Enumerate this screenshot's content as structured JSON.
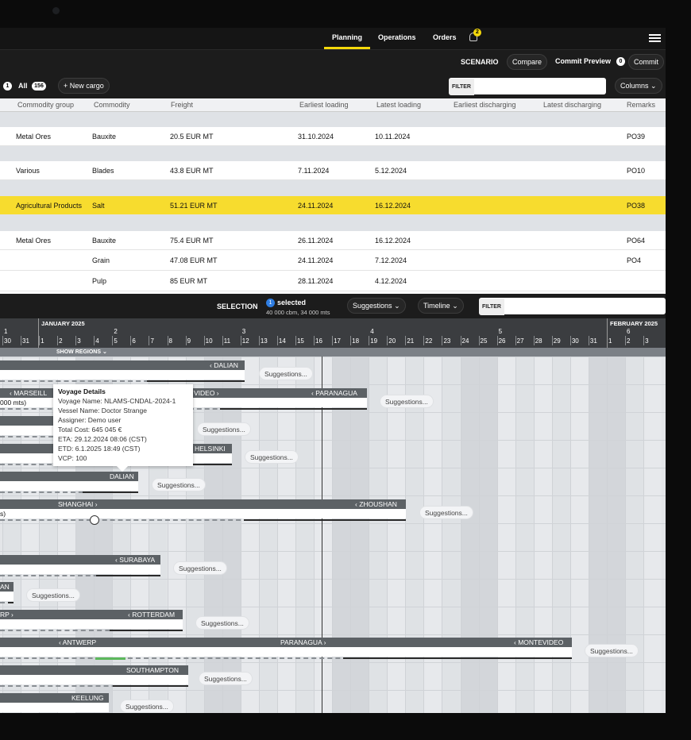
{
  "nav": {
    "tabs": [
      "Planning",
      "Operations",
      "Orders"
    ],
    "active_tab": "Planning",
    "notification_count": "2",
    "accent": "#f5d90a"
  },
  "scenario": {
    "label": "SCENARIO",
    "compare": "Compare",
    "commit_preview": "Commit Preview",
    "commit_count": "0",
    "commit": "Commit"
  },
  "cargo_toolbar": {
    "selected_count": "1",
    "all_label": "All",
    "all_count": "156",
    "new_cargo": "+ New cargo",
    "filter_label": "FILTER",
    "filter_value": "",
    "columns": "Columns"
  },
  "table": {
    "headers": [
      "Commodity group",
      "Commodity",
      "Freight",
      "Earliest loading",
      "Latest loading",
      "Earliest discharging",
      "Latest discharging",
      "Remarks"
    ],
    "rows": [
      {
        "group": "Metal Ores",
        "commodity": "Bauxite",
        "freight": "20.5 EUR MT",
        "earliest_loading": "31.10.2024",
        "latest_loading": "10.11.2024",
        "remarks": "PO39"
      },
      {
        "group": "Various",
        "commodity": "Blades",
        "freight": "43.8 EUR MT",
        "earliest_loading": "7.11.2024",
        "latest_loading": "5.12.2024",
        "remarks": "PO10"
      },
      {
        "group": "Agricultural Products",
        "commodity": "Salt",
        "freight": "51.21 EUR MT",
        "earliest_loading": "24.11.2024",
        "latest_loading": "16.12.2024",
        "remarks": "PO38",
        "highlighted": true
      },
      {
        "group": "Metal Ores",
        "commodity": "Bauxite",
        "freight": "75.4 EUR MT",
        "earliest_loading": "26.11.2024",
        "latest_loading": "16.12.2024",
        "remarks": "PO64"
      },
      {
        "group": "",
        "commodity": "Grain",
        "freight": "47.08 EUR MT",
        "earliest_loading": "24.11.2024",
        "latest_loading": "7.12.2024",
        "remarks": "PO4"
      },
      {
        "group": "",
        "commodity": "Pulp",
        "freight": "85 EUR MT",
        "earliest_loading": "28.11.2024",
        "latest_loading": "4.12.2024",
        "remarks": ""
      }
    ]
  },
  "selection": {
    "label": "SELECTION",
    "count": "1",
    "selected": "selected",
    "summary": "40 000 cbm, 34 000 mts",
    "suggestions": "Suggestions",
    "timeline": "Timeline",
    "filter_label": "FILTER"
  },
  "timeline": {
    "months": [
      "JANUARY 2025",
      "FEBRUARY 2025"
    ],
    "weeks": [
      "1",
      "2",
      "3",
      "4",
      "5",
      "6"
    ],
    "days": [
      "30",
      "31",
      "1",
      "2",
      "3",
      "4",
      "5",
      "6",
      "7",
      "8",
      "9",
      "10",
      "11",
      "12",
      "13",
      "14",
      "15",
      "16",
      "17",
      "18",
      "19",
      "20",
      "21",
      "22",
      "23",
      "24",
      "25",
      "26",
      "27",
      "28",
      "29",
      "30",
      "31",
      "1",
      "2",
      "3"
    ],
    "show_regions": "SHOW REGIONS"
  },
  "gantt": {
    "suggestions_label": "Suggestions...",
    "rows": [
      {
        "labels": [
          "‹ DALIAN"
        ],
        "body": ""
      },
      {
        "labels": [
          "‹ MARSEILL",
          "VIDEO ›",
          "‹ PARANAGUA"
        ],
        "body": "000 mts)"
      },
      {
        "labels": [],
        "body": ""
      },
      {
        "labels": [
          "HELSINKI"
        ],
        "body": ""
      },
      {
        "labels": [
          "DALIAN"
        ],
        "body": ""
      },
      {
        "labels": [
          "SHANGHAI ›",
          "‹ ZHOUSHAN"
        ],
        "body": "s)"
      },
      {
        "labels": [
          "‹ SURABAYA"
        ],
        "body": ""
      },
      {
        "labels": [
          "AN"
        ],
        "body": ""
      },
      {
        "labels": [
          "RP ›",
          "‹ ROTTERDAM"
        ],
        "body": ""
      },
      {
        "labels": [
          "‹ ANTWERP",
          "PARANAGUA ›",
          "‹ MONTEVIDEO"
        ],
        "body": ""
      },
      {
        "labels": [
          "SOUTHAMPTON"
        ],
        "body": ""
      },
      {
        "labels": [
          "KEELUNG"
        ],
        "body": ""
      }
    ]
  },
  "tooltip": {
    "title": "Voyage Details",
    "lines": [
      "Voyage Name: NLAMS-CNDAL-2024-1",
      "Vessel Name: Doctor Strange",
      "Assigner: Demo user",
      "Total Cost: 645 045 €",
      "ETA: 29.12.2024 08:06 (CST)",
      "ETD: 6.1.2025 18:49 (CST)",
      "VCP: 100"
    ]
  }
}
